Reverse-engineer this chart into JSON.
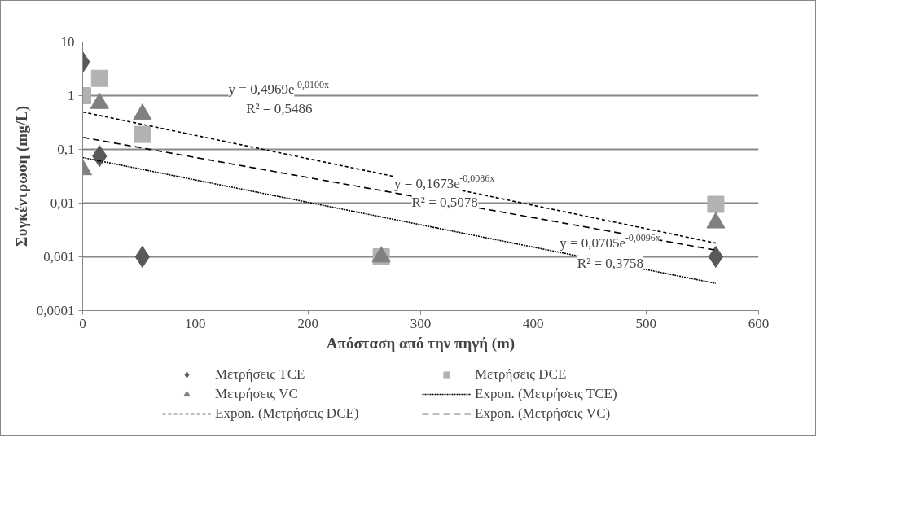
{
  "chart_data": {
    "type": "scatter",
    "xlabel": "Απόσταση από την πηγή (m)",
    "ylabel": "Συγκέντρωση (mg/L)",
    "xlim": [
      0,
      600
    ],
    "xticks": [
      0,
      100,
      200,
      300,
      400,
      500,
      600
    ],
    "ylim": [
      0.0001,
      10
    ],
    "yticks": [
      {
        "value": 0.0001,
        "label": "0,0001"
      },
      {
        "value": 0.001,
        "label": "0,001"
      },
      {
        "value": 0.01,
        "label": "0,01"
      },
      {
        "value": 0.1,
        "label": "0,1"
      },
      1,
      10
    ],
    "log": "y",
    "grid": "y",
    "legend": "bottom",
    "series": [
      {
        "name": "Μετρήσεις TCE",
        "marker": "diamond",
        "color": "#595959",
        "x": [
          0,
          15,
          53,
          265,
          562
        ],
        "values": [
          4.2,
          0.075,
          0.001,
          null,
          0.001
        ]
      },
      {
        "name": "Μετρήσεις DCE",
        "marker": "square",
        "color": "#b2b2b2",
        "x": [
          0,
          15,
          53,
          265,
          562
        ],
        "values": [
          1,
          2.1,
          0.19,
          0.001,
          0.0095
        ]
      },
      {
        "name": "Μετρήσεις VC",
        "marker": "triangle",
        "color": "#808080",
        "x": [
          0,
          15,
          53,
          265,
          562
        ],
        "values": [
          0.042,
          0.72,
          0.45,
          0.001,
          0.0043
        ]
      },
      {
        "name": "Expon. (Μετρήσεις TCE)",
        "type": "line",
        "line_style": "dotted",
        "color": "#000000",
        "x": [
          0,
          562
        ],
        "values": [
          0.0705,
          0.00032
        ]
      },
      {
        "name": "Expon. (Μετρήσεις DCE)",
        "type": "line",
        "line_style": "dotted",
        "color": "#000000",
        "x": [
          0,
          562
        ],
        "values": [
          0.4969,
          0.0018
        ]
      },
      {
        "name": "Expon. (Μετρήσεις VC)",
        "type": "line",
        "line_style": "dashed",
        "color": "#000000",
        "x": [
          0,
          562
        ],
        "values": [
          0.1673,
          0.00133
        ]
      }
    ],
    "annotations": [
      "y = 0,4969e$^{-0,0100x}$",
      "R² = 0,5486",
      "y = 0,1673e$^{-0,0086x}$",
      "R² = 0,5078",
      "y = 0,0705e$^{-0,0096x}$",
      "R² = 0,3758"
    ]
  }
}
